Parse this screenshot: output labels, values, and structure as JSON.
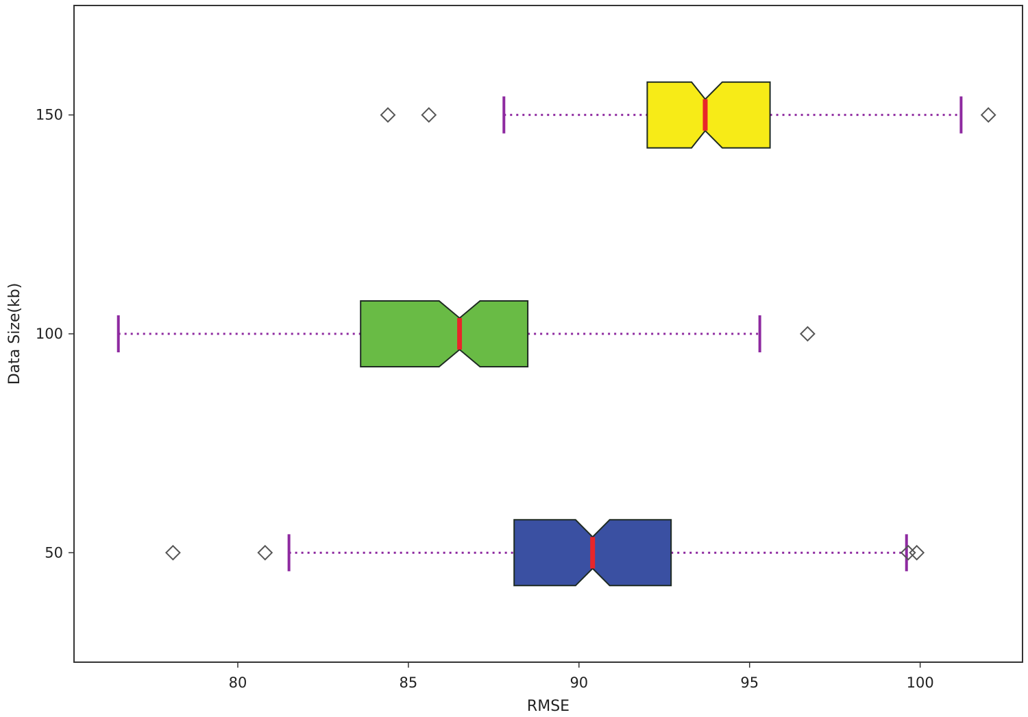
{
  "chart_data": {
    "type": "boxplot",
    "orientation": "horizontal",
    "notched": true,
    "title": "",
    "xlabel": "RMSE",
    "ylabel": "Data Size(kb)",
    "xlim": [
      75.2,
      103.0
    ],
    "ylim": [
      25,
      175
    ],
    "x_ticks": [
      80,
      85,
      90,
      95,
      100
    ],
    "y_ticks": [
      50,
      100,
      150
    ],
    "grid": false,
    "whisker_color": "#8e2aa0",
    "median_color": "#e8262a",
    "outlier_marker": "diamond",
    "series": [
      {
        "category": 50,
        "color": "#3a50a2",
        "whisker_low": 81.5,
        "q1": 88.1,
        "median": 90.4,
        "q3": 92.7,
        "whisker_high": 99.6,
        "notch_low": 89.9,
        "notch_high": 90.9,
        "outliers": [
          78.1,
          80.8,
          99.65,
          99.9
        ]
      },
      {
        "category": 100,
        "color": "#69bb45",
        "whisker_low": 76.5,
        "q1": 83.6,
        "median": 86.5,
        "q3": 88.5,
        "whisker_high": 95.3,
        "notch_low": 85.9,
        "notch_high": 87.1,
        "outliers": [
          96.7
        ]
      },
      {
        "category": 150,
        "color": "#f7eb17",
        "whisker_low": 87.8,
        "q1": 92.0,
        "median": 93.7,
        "q3": 95.6,
        "whisker_high": 101.2,
        "notch_low": 93.3,
        "notch_high": 94.2,
        "outliers": [
          84.4,
          85.6,
          102.0
        ]
      }
    ]
  }
}
